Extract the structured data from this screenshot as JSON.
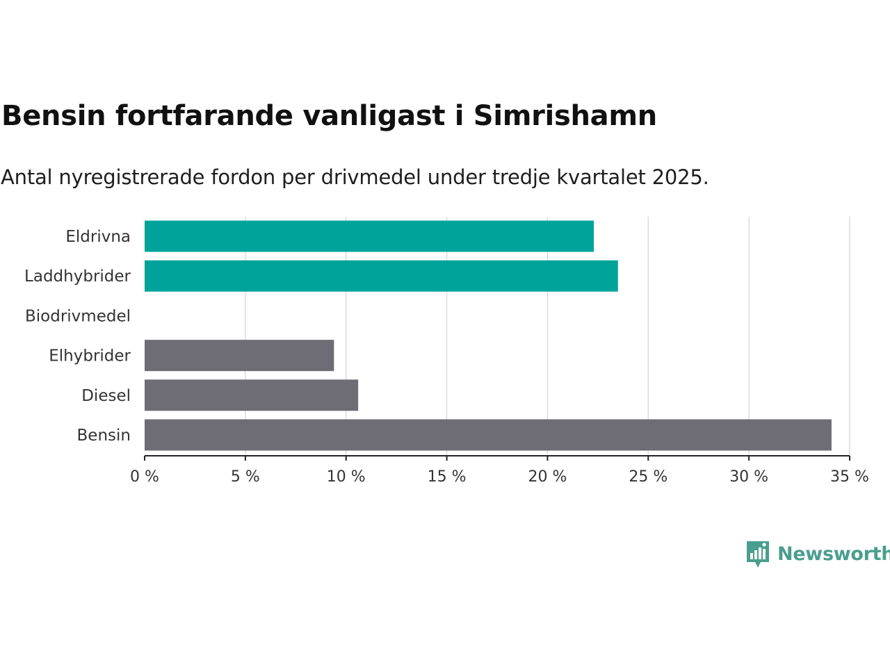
{
  "chart_data": {
    "type": "bar",
    "orientation": "horizontal",
    "title": "Bensin fortfarande vanligast i Simrishamn",
    "subtitle": "Antal nyregistrerade fordon per drivmedel under tredje kvartalet 2025.",
    "categories": [
      "Eldrivna",
      "Laddhybrider",
      "Biodrivmedel",
      "Elhybrider",
      "Diesel",
      "Bensin"
    ],
    "values": [
      22.3,
      23.5,
      0,
      9.4,
      10.6,
      34.1
    ],
    "bar_colors": [
      "#00a39a",
      "#00a39a",
      "#00a39a",
      "#6e6d75",
      "#6e6d75",
      "#6e6d75"
    ],
    "xlim": [
      0,
      35
    ],
    "xticks": [
      0,
      5,
      10,
      15,
      20,
      25,
      30,
      35
    ],
    "xtick_labels": [
      "0 %",
      "5 %",
      "10 %",
      "15 %",
      "20 %",
      "25 %",
      "30 %",
      "35 %"
    ],
    "xlabel": "",
    "ylabel": "",
    "grid": true
  },
  "branding": {
    "logo_text": "Newsworthy",
    "logo_color": "#4a9e8e"
  }
}
